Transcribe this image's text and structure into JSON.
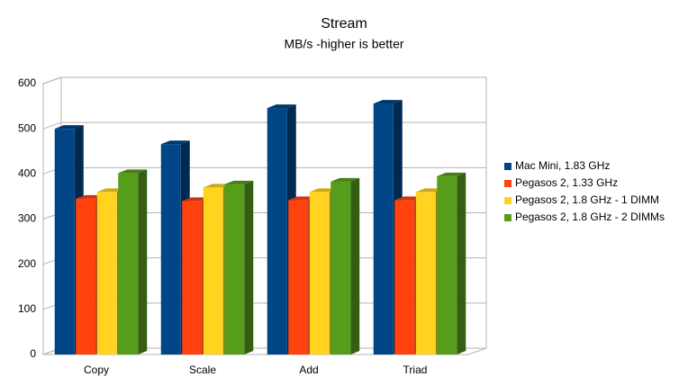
{
  "chart_data": {
    "type": "bar3d",
    "title": "Stream",
    "subtitle": "MB/s -higher is better",
    "categories": [
      "Copy",
      "Scale",
      "Add",
      "Triad"
    ],
    "series": [
      {
        "name": "Mac Mini, 1.83 GHz",
        "color": "#004586",
        "values": [
          500,
          466,
          546,
          556
        ]
      },
      {
        "name": "Pegasos 2, 1.33 GHz",
        "color": "#ff420e",
        "values": [
          345,
          340,
          342,
          342
        ]
      },
      {
        "name": "Pegasos 2, 1.8 GHz - 1 DIMM",
        "color": "#ffd320",
        "values": [
          360,
          370,
          360,
          360
        ]
      },
      {
        "name": "Pegasos 2, 1.8 GHz - 2 DIMMs",
        "color": "#579d1c",
        "values": [
          402,
          377,
          383,
          395
        ]
      }
    ],
    "ylim": [
      0,
      600
    ],
    "yticks": [
      0,
      100,
      200,
      300,
      400,
      500,
      600
    ],
    "grid": true,
    "legend": "right"
  }
}
